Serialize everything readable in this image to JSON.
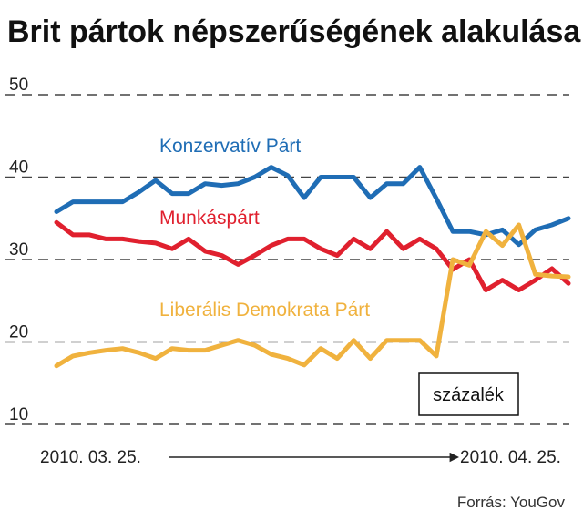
{
  "chart_data": {
    "type": "line",
    "title": "Brit pártok népszerűségének alakulása",
    "unit_label": "százalék",
    "source": "Forrás: YouGov",
    "x_start_label": "2010. 03. 25.",
    "x_end_label": "2010. 04. 25.",
    "ylim": [
      10,
      50
    ],
    "yticks": [
      "50",
      "40",
      "30",
      "20",
      "10"
    ],
    "ytick_values": [
      50,
      40,
      30,
      20,
      10
    ],
    "grid": "dashed horizontal",
    "series": [
      {
        "name": "Konzervatív Párt",
        "color": "#1f6db5",
        "values": [
          35.8,
          37,
          37,
          37,
          37,
          38.2,
          39.6,
          38,
          38,
          39.2,
          39,
          39.2,
          40,
          41.2,
          40.2,
          37.5,
          40,
          40,
          40,
          37.5,
          39.2,
          39.2,
          41.2,
          37.4,
          33.4,
          33.4,
          33,
          33.6,
          31.8,
          33.6,
          34.2,
          35
        ]
      },
      {
        "name": "Munkáspárt",
        "color": "#e0202e",
        "values": [
          34.5,
          33,
          33,
          32.5,
          32.5,
          32.2,
          32,
          31.3,
          32.5,
          31,
          30.5,
          29.4,
          30.5,
          31.7,
          32.5,
          32.5,
          31.3,
          30.5,
          32.5,
          31.3,
          33.4,
          31.3,
          32.5,
          31.3,
          28.8,
          30,
          26.3,
          27.5,
          26.3,
          27.5,
          28.9,
          27.1
        ]
      },
      {
        "name": "Liberális Demokrata Párt",
        "color": "#f0b23e",
        "values": [
          17.1,
          18.3,
          18.7,
          19,
          19.2,
          18.7,
          18,
          19.2,
          19,
          19,
          19.6,
          20.2,
          19.6,
          18.5,
          18,
          17.2,
          19.2,
          18,
          20.2,
          18,
          20.2,
          20.2,
          20.2,
          18.3,
          30,
          29.3,
          33.4,
          31.7,
          34.2,
          28.2,
          28,
          27.9
        ]
      }
    ]
  }
}
